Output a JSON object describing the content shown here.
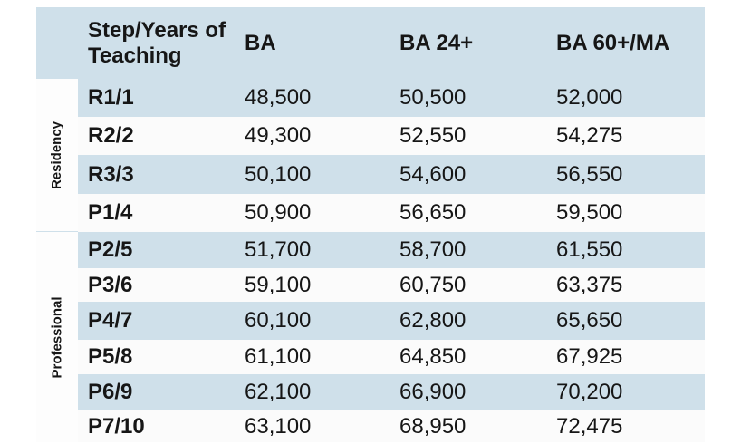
{
  "table": {
    "headers": {
      "step": "Step/Years of Teaching",
      "ba": "BA",
      "ba24": "BA 24+",
      "ba60": "BA 60+/MA"
    },
    "groups": {
      "residency": "Residency",
      "professional": "Professional"
    },
    "rows": [
      {
        "step": "R1/1",
        "ba": "48,500",
        "ba24": "50,500",
        "ba60": "52,000"
      },
      {
        "step": "R2/2",
        "ba": "49,300",
        "ba24": "52,550",
        "ba60": "54,275"
      },
      {
        "step": "R3/3",
        "ba": "50,100",
        "ba24": "54,600",
        "ba60": "56,550"
      },
      {
        "step": "P1/4",
        "ba": "50,900",
        "ba24": "56,650",
        "ba60": "59,500"
      },
      {
        "step": "P2/5",
        "ba": "51,700",
        "ba24": "58,700",
        "ba60": "61,550"
      },
      {
        "step": "P3/6",
        "ba": "59,100",
        "ba24": "60,750",
        "ba60": "63,375"
      },
      {
        "step": "P4/7",
        "ba": "60,100",
        "ba24": "62,800",
        "ba60": "65,650"
      },
      {
        "step": "P5/8",
        "ba": "61,100",
        "ba24": "64,850",
        "ba60": "67,925"
      },
      {
        "step": "P6/9",
        "ba": "62,100",
        "ba24": "66,900",
        "ba60": "70,200"
      },
      {
        "step": "P7/10",
        "ba": "63,100",
        "ba24": "68,950",
        "ba60": "72,475"
      }
    ]
  }
}
